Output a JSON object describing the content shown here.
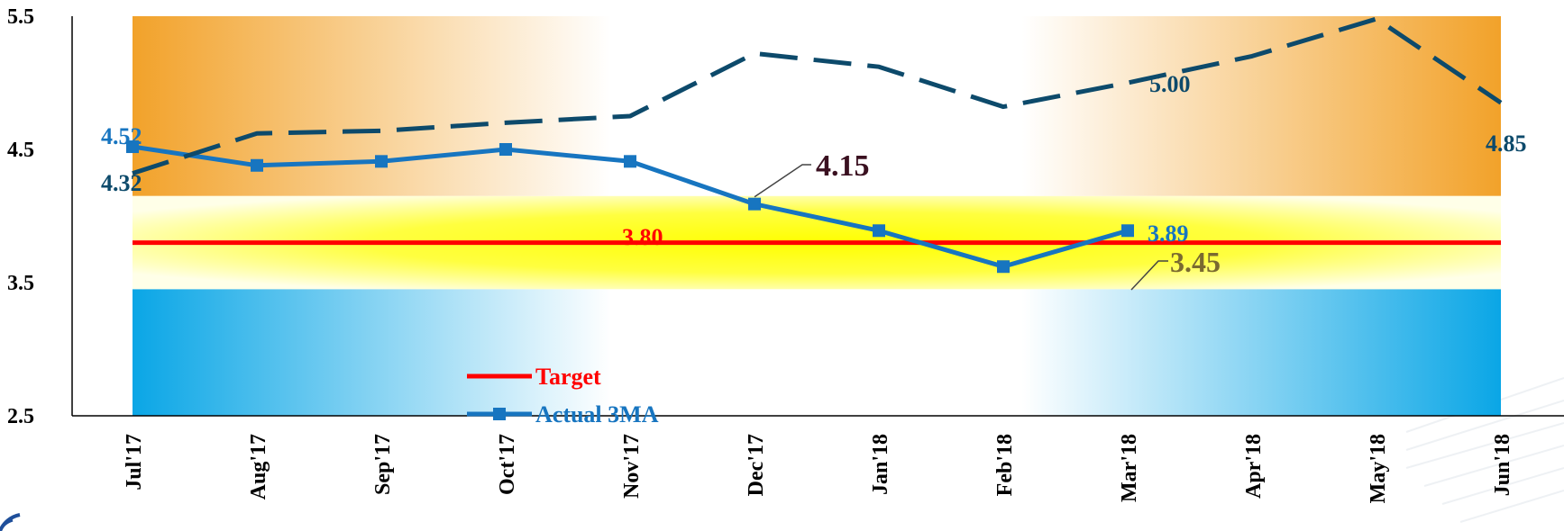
{
  "chart_data": {
    "type": "line",
    "categories": [
      "Jul'17",
      "Aug'17",
      "Sep'17",
      "Oct'17",
      "Nov'17",
      "Dec'17",
      "Jan'18",
      "Feb'18",
      "Mar'18",
      "Apr'18",
      "May'18",
      "Jun'18"
    ],
    "y_ticks": [
      "5.5",
      "4.5",
      "3.5",
      "2.5"
    ],
    "ylim": [
      2.5,
      5.5
    ],
    "bands": [
      {
        "from": 4.15,
        "to": 5.5,
        "color": "#f2a22a"
      },
      {
        "from": 3.45,
        "to": 4.15,
        "color": "#ffff00"
      },
      {
        "from": 2.5,
        "to": 3.45,
        "color": "#0aa6e6"
      }
    ],
    "series": [
      {
        "name": "Target",
        "color": "#ff0000",
        "style": "solid",
        "values": [
          3.8,
          3.8,
          3.8,
          3.8,
          3.8,
          3.8,
          3.8,
          3.8,
          3.8,
          3.8,
          3.8,
          3.8
        ]
      },
      {
        "name": "Actual 3MA",
        "color": "#1775c0",
        "style": "solid-square",
        "values": [
          4.52,
          4.38,
          4.41,
          4.5,
          4.41,
          4.09,
          3.89,
          3.62,
          3.89,
          null,
          null,
          null
        ]
      },
      {
        "color": "#0d4a6b",
        "style": "dashed",
        "values": [
          4.32,
          4.62,
          4.64,
          4.7,
          4.75,
          5.22,
          5.12,
          4.82,
          5.0,
          5.2,
          5.48,
          4.85
        ]
      }
    ],
    "data_labels": [
      {
        "text": "4.52",
        "color": "#1775c0"
      },
      {
        "text": "4.32",
        "color": "#0d4a6b"
      },
      {
        "text": "4.15",
        "color": "#3a1020"
      },
      {
        "text": "3.80",
        "color": "#ff0000"
      },
      {
        "text": "3.89",
        "color": "#1775c0"
      },
      {
        "text": "3.45",
        "color": "#7a6a30"
      },
      {
        "text": "5.00",
        "color": "#0d4a6b"
      },
      {
        "text": "4.85",
        "color": "#0d4a6b"
      }
    ],
    "legend": [
      {
        "label": "Target",
        "color": "#ff0000"
      },
      {
        "label": "Actual 3MA",
        "color": "#1775c0"
      }
    ]
  }
}
